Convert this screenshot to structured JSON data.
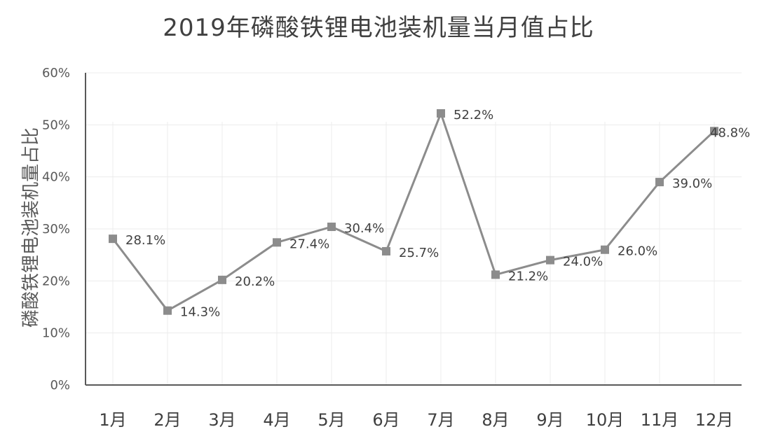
{
  "chart_data": {
    "type": "line",
    "title": "2019年磷酸铁锂电池装机量当月值占比",
    "ylabel": "磷酸铁锂电池装机量占比",
    "xlabel": "",
    "categories": [
      "1月",
      "2月",
      "3月",
      "4月",
      "5月",
      "6月",
      "7月",
      "8月",
      "9月",
      "10月",
      "11月",
      "12月"
    ],
    "values": [
      28.1,
      14.3,
      20.2,
      27.4,
      30.4,
      25.7,
      52.2,
      21.2,
      24.0,
      26.0,
      39.0,
      48.8
    ],
    "value_labels": [
      "28.1%",
      "14.3%",
      "20.2%",
      "27.4%",
      "30.4%",
      "25.7%",
      "52.2%",
      "21.2%",
      "24.0%",
      "26.0%",
      "39.0%",
      "48.8%"
    ],
    "ylim": [
      0,
      60
    ],
    "yticks": [
      0,
      10,
      20,
      30,
      40,
      50,
      60
    ],
    "ytick_labels": [
      "0%",
      "10%",
      "20%",
      "30%",
      "40%",
      "50%",
      "60%"
    ],
    "grid": true,
    "colors": {
      "line": "#8c8c8c",
      "marker": "#8c8c8c",
      "grid": "#ececec",
      "axis": "#595959"
    }
  }
}
